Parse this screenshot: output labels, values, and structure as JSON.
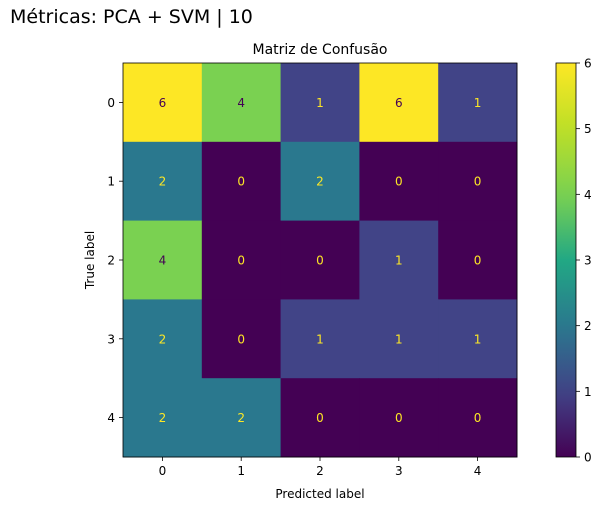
{
  "figure": {
    "suptitle": "Métricas: PCA + SVM | 10"
  },
  "chart_data": {
    "type": "heatmap",
    "title": "Matriz de Confusão",
    "xlabel": "Predicted label",
    "ylabel": "True label",
    "x_categories": [
      "0",
      "1",
      "2",
      "3",
      "4"
    ],
    "y_categories": [
      "0",
      "1",
      "2",
      "3",
      "4"
    ],
    "values": [
      [
        6,
        4,
        1,
        6,
        1
      ],
      [
        2,
        0,
        2,
        0,
        0
      ],
      [
        4,
        0,
        0,
        1,
        0
      ],
      [
        2,
        0,
        1,
        1,
        1
      ],
      [
        2,
        2,
        0,
        0,
        0
      ]
    ],
    "colormap": "viridis",
    "vmin": 0,
    "vmax": 6,
    "colorbar_ticks": [
      0,
      1,
      2,
      3,
      4,
      5,
      6
    ],
    "text_color_on_dark": "#fde725",
    "text_color_on_light": "#440154"
  }
}
